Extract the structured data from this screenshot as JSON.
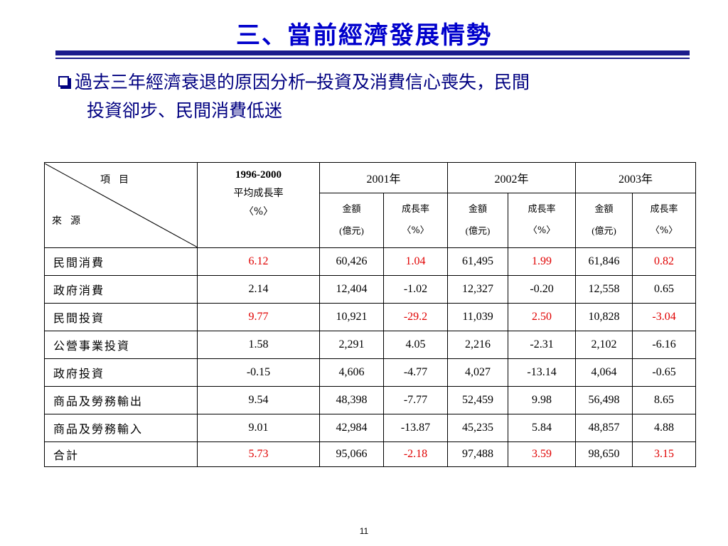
{
  "title": "三、當前經濟發展情勢",
  "bullet": {
    "line1": "過去三年經濟衰退的原因分析─投資及消費信心喪失，民間",
    "line2": "投資卻步、民間消費低迷"
  },
  "table": {
    "corner_item": "項目",
    "corner_source": "來源",
    "avg_header": {
      "years": "1996-2000",
      "label": "平均成長率",
      "unit": "〈%〉"
    },
    "years": [
      "2001年",
      "2002年",
      "2003年"
    ],
    "sub_amount": {
      "label": "金額",
      "unit": "(億元)"
    },
    "sub_growth": {
      "label": "成長率",
      "unit": "〈%〉"
    },
    "rows": [
      {
        "label": "民間消費",
        "avg": "6.12",
        "avg_red": true,
        "cells": [
          {
            "amt": "60,426",
            "g": "1.04",
            "red": true
          },
          {
            "amt": "61,495",
            "g": "1.99",
            "red": true
          },
          {
            "amt": "61,846",
            "g": "0.82",
            "red": true
          }
        ]
      },
      {
        "label": "政府消費",
        "avg": "2.14",
        "avg_red": false,
        "cells": [
          {
            "amt": "12,404",
            "g": "-1.02",
            "red": false
          },
          {
            "amt": "12,327",
            "g": "-0.20",
            "red": false
          },
          {
            "amt": "12,558",
            "g": "0.65",
            "red": false
          }
        ]
      },
      {
        "label": "民間投資",
        "avg": "9.77",
        "avg_red": true,
        "cells": [
          {
            "amt": "10,921",
            "g": "-29.2",
            "red": true
          },
          {
            "amt": "11,039",
            "g": "2.50",
            "red": true
          },
          {
            "amt": "10,828",
            "g": "-3.04",
            "red": true
          }
        ]
      },
      {
        "label": "公營事業投資",
        "avg": "1.58",
        "avg_red": false,
        "cells": [
          {
            "amt": "2,291",
            "g": "4.05",
            "red": false
          },
          {
            "amt": "2,216",
            "g": "-2.31",
            "red": false
          },
          {
            "amt": "2,102",
            "g": "-6.16",
            "red": false
          }
        ]
      },
      {
        "label": "政府投資",
        "avg": "-0.15",
        "avg_red": false,
        "cells": [
          {
            "amt": "4,606",
            "g": "-4.77",
            "red": false
          },
          {
            "amt": "4,027",
            "g": "-13.14",
            "red": false
          },
          {
            "amt": "4,064",
            "g": "-0.65",
            "red": false
          }
        ]
      },
      {
        "label": "商品及勞務輸出",
        "avg": "9.54",
        "avg_red": false,
        "cells": [
          {
            "amt": "48,398",
            "g": "-7.77",
            "red": false
          },
          {
            "amt": "52,459",
            "g": "9.98",
            "red": false
          },
          {
            "amt": "56,498",
            "g": "8.65",
            "red": false
          }
        ]
      },
      {
        "label": "商品及勞務輸入",
        "avg": "9.01",
        "avg_red": false,
        "cells": [
          {
            "amt": "42,984",
            "g": "-13.87",
            "red": false
          },
          {
            "amt": "45,235",
            "g": "5.84",
            "red": false
          },
          {
            "amt": "48,857",
            "g": "4.88",
            "red": false
          }
        ]
      },
      {
        "label": "合計",
        "avg": "5.73",
        "avg_red": true,
        "cells": [
          {
            "amt": "95,066",
            "g": "-2.18",
            "red": true
          },
          {
            "amt": "97,488",
            "g": "3.59",
            "red": true
          },
          {
            "amt": "98,650",
            "g": "3.15",
            "red": true
          }
        ]
      }
    ]
  },
  "page_number": "11",
  "colors": {
    "title": "#0000cc",
    "rule": "#1a1a8c",
    "bullet": "#000080",
    "highlight": "#e00000"
  }
}
